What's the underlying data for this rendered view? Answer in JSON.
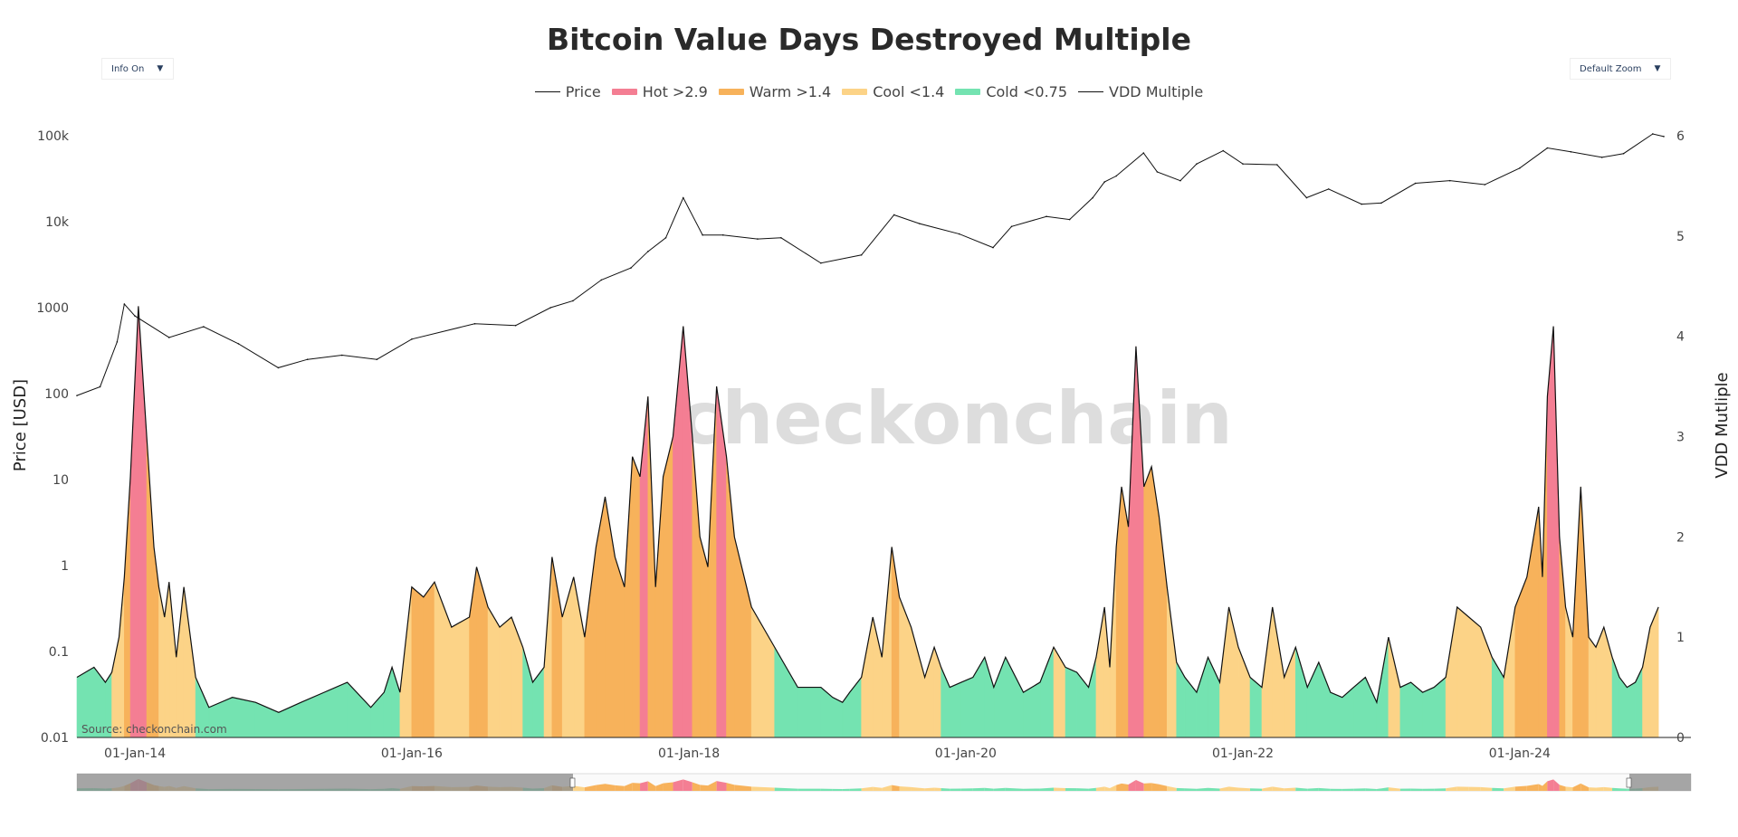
{
  "chart_data": {
    "type": "area",
    "title": "Bitcoin Value Days Destroyed Multiple",
    "source": "Source: checkonchain.com",
    "watermark": "checkonchain",
    "controls": {
      "info": "Info On",
      "zoom": "Default Zoom"
    },
    "legend": [
      {
        "name": "Price",
        "kind": "line",
        "color": "#111111"
      },
      {
        "name": "Hot >2.9",
        "kind": "area",
        "color": "#f47e93"
      },
      {
        "name": "Warm >1.4",
        "kind": "area",
        "color": "#f7b25b"
      },
      {
        "name": "Cool <1.4",
        "kind": "area",
        "color": "#fcd387"
      },
      {
        "name": "Cold <0.75",
        "kind": "area",
        "color": "#74e3b1"
      },
      {
        "name": "VDD Multiple",
        "kind": "line",
        "color": "#111111"
      }
    ],
    "y_left": {
      "label": "Price [USD]",
      "scale": "log",
      "range": [
        0.01,
        100000
      ],
      "ticks": [
        0.01,
        0.1,
        1,
        10,
        100,
        1000,
        10000,
        100000
      ],
      "tick_labels": [
        "0.01",
        "0.1",
        "1",
        "10",
        "100",
        "1000",
        "10k",
        "100k"
      ]
    },
    "y_right": {
      "label": "VDD Mutliple",
      "scale": "linear",
      "range": [
        0,
        6
      ],
      "ticks": [
        0,
        1,
        2,
        3,
        4,
        5,
        6
      ],
      "tick_labels": [
        "0",
        "1",
        "2",
        "3",
        "4",
        "5",
        "6"
      ]
    },
    "x_axis": {
      "range": [
        "2013-08-01",
        "2025-01-15"
      ],
      "ticks": [
        "2014-01-01",
        "2016-01-01",
        "2018-01-01",
        "2020-01-01",
        "2022-01-01",
        "2024-01-01"
      ],
      "tick_labels": [
        "01-Jan-14",
        "01-Jan-16",
        "01-Jan-18",
        "01-Jan-20",
        "01-Jan-22",
        "01-Jan-24"
      ]
    },
    "thresholds": {
      "hot": 2.9,
      "warm": 1.4,
      "cool": 0.75
    },
    "price_series": {
      "name": "Price",
      "x": [
        "2013-08-01",
        "2013-10-01",
        "2013-11-15",
        "2013-12-04",
        "2014-01-01",
        "2014-04-01",
        "2014-07-01",
        "2014-10-01",
        "2015-01-14",
        "2015-04-01",
        "2015-07-01",
        "2015-10-01",
        "2016-01-01",
        "2016-06-15",
        "2016-10-01",
        "2017-01-01",
        "2017-03-01",
        "2017-05-15",
        "2017-08-01",
        "2017-09-15",
        "2017-11-01",
        "2017-12-17",
        "2018-02-06",
        "2018-04-01",
        "2018-07-01",
        "2018-09-01",
        "2018-12-15",
        "2019-04-01",
        "2019-06-26",
        "2019-09-01",
        "2019-12-15",
        "2020-03-13",
        "2020-05-01",
        "2020-08-01",
        "2020-10-01",
        "2020-12-01",
        "2021-01-01",
        "2021-02-01",
        "2021-04-14",
        "2021-05-20",
        "2021-07-20",
        "2021-09-01",
        "2021-11-10",
        "2022-01-01",
        "2022-04-01",
        "2022-06-18",
        "2022-08-15",
        "2022-11-10",
        "2023-01-01",
        "2023-04-01",
        "2023-07-01",
        "2023-10-01",
        "2024-01-01",
        "2024-03-14",
        "2024-05-15",
        "2024-08-05",
        "2024-10-01",
        "2024-12-17",
        "2025-01-15"
      ],
      "values": [
        95,
        120,
        400,
        1100,
        800,
        450,
        600,
        380,
        200,
        250,
        280,
        250,
        430,
        650,
        620,
        1000,
        1200,
        2100,
        2900,
        4500,
        6500,
        19000,
        7000,
        7000,
        6300,
        6500,
        3300,
        4100,
        12000,
        9500,
        7200,
        5000,
        8800,
        11500,
        10600,
        19000,
        29000,
        34000,
        63000,
        38000,
        30000,
        47000,
        67000,
        47000,
        46000,
        19000,
        24000,
        16000,
        16500,
        28000,
        30000,
        27000,
        42000,
        72000,
        65000,
        56000,
        62000,
        105000,
        98000
      ]
    },
    "vdd_series": {
      "name": "VDD Multiple",
      "x": [
        "2013-08-01",
        "2013-09-15",
        "2013-10-15",
        "2013-11-01",
        "2013-11-20",
        "2013-12-04",
        "2013-12-20",
        "2014-01-10",
        "2014-02-01",
        "2014-02-20",
        "2014-03-05",
        "2014-03-20",
        "2014-04-01",
        "2014-04-20",
        "2014-05-10",
        "2014-06-10",
        "2014-07-15",
        "2014-09-15",
        "2014-11-15",
        "2015-01-15",
        "2015-03-15",
        "2015-05-15",
        "2015-07-15",
        "2015-09-15",
        "2015-10-20",
        "2015-11-10",
        "2015-12-01",
        "2016-01-01",
        "2016-02-01",
        "2016-03-01",
        "2016-04-15",
        "2016-06-01",
        "2016-06-20",
        "2016-07-20",
        "2016-08-20",
        "2016-09-20",
        "2016-10-20",
        "2016-11-15",
        "2016-12-15",
        "2017-01-05",
        "2017-02-01",
        "2017-03-03",
        "2017-04-01",
        "2017-05-01",
        "2017-05-25",
        "2017-06-20",
        "2017-07-15",
        "2017-08-05",
        "2017-08-25",
        "2017-09-15",
        "2017-10-05",
        "2017-10-25",
        "2017-11-20",
        "2017-12-17",
        "2018-01-10",
        "2018-01-30",
        "2018-02-20",
        "2018-03-15",
        "2018-04-10",
        "2018-05-01",
        "2018-06-15",
        "2018-08-15",
        "2018-10-15",
        "2018-12-15",
        "2019-01-15",
        "2019-02-10",
        "2019-03-01",
        "2019-04-01",
        "2019-05-01",
        "2019-05-25",
        "2019-06-20",
        "2019-07-10",
        "2019-08-10",
        "2019-09-15",
        "2019-10-10",
        "2019-10-28",
        "2019-11-20",
        "2019-12-20",
        "2020-01-20",
        "2020-02-20",
        "2020-03-15",
        "2020-04-15",
        "2020-06-01",
        "2020-07-15",
        "2020-08-20",
        "2020-09-20",
        "2020-10-20",
        "2020-11-20",
        "2020-12-10",
        "2021-01-01",
        "2021-01-15",
        "2021-02-01",
        "2021-02-15",
        "2021-03-05",
        "2021-03-25",
        "2021-04-15",
        "2021-05-05",
        "2021-05-25",
        "2021-06-15",
        "2021-07-10",
        "2021-08-01",
        "2021-09-01",
        "2021-10-01",
        "2021-11-01",
        "2021-11-25",
        "2021-12-20",
        "2022-01-20",
        "2022-02-20",
        "2022-03-20",
        "2022-04-20",
        "2022-05-20",
        "2022-06-20",
        "2022-07-20",
        "2022-08-20",
        "2022-09-20",
        "2022-10-20",
        "2022-11-20",
        "2022-12-20",
        "2023-01-20",
        "2023-02-20",
        "2023-03-20",
        "2023-04-20",
        "2023-05-20",
        "2023-06-20",
        "2023-07-20",
        "2023-08-20",
        "2023-09-20",
        "2023-10-20",
        "2023-11-20",
        "2023-12-20",
        "2024-01-20",
        "2024-02-20",
        "2024-03-01",
        "2024-03-14",
        "2024-03-30",
        "2024-04-15",
        "2024-05-01",
        "2024-05-20",
        "2024-06-10",
        "2024-07-01",
        "2024-07-20",
        "2024-08-10",
        "2024-09-01",
        "2024-09-20",
        "2024-10-10",
        "2024-11-01",
        "2024-11-20",
        "2024-12-10",
        "2025-01-01"
      ],
      "values": [
        0.6,
        0.7,
        0.55,
        0.65,
        1.0,
        1.6,
        2.6,
        4.3,
        3.0,
        1.9,
        1.5,
        1.2,
        1.55,
        0.8,
        1.5,
        0.6,
        0.3,
        0.4,
        0.35,
        0.25,
        0.35,
        0.45,
        0.55,
        0.3,
        0.45,
        0.7,
        0.45,
        1.5,
        1.4,
        1.55,
        1.1,
        1.2,
        1.7,
        1.3,
        1.1,
        1.2,
        0.9,
        0.55,
        0.7,
        1.8,
        1.2,
        1.6,
        1.0,
        1.9,
        2.4,
        1.8,
        1.5,
        2.8,
        2.6,
        3.4,
        1.5,
        2.6,
        3.0,
        4.1,
        3.0,
        2.0,
        1.7,
        3.5,
        2.8,
        2.0,
        1.3,
        0.9,
        0.5,
        0.5,
        0.4,
        0.35,
        0.45,
        0.6,
        1.2,
        0.8,
        1.9,
        1.4,
        1.1,
        0.6,
        0.9,
        0.7,
        0.5,
        0.55,
        0.6,
        0.8,
        0.5,
        0.8,
        0.45,
        0.55,
        0.9,
        0.7,
        0.65,
        0.5,
        0.8,
        1.3,
        0.7,
        1.9,
        2.5,
        2.1,
        3.9,
        2.5,
        2.7,
        2.2,
        1.5,
        0.75,
        0.6,
        0.45,
        0.8,
        0.55,
        1.3,
        0.9,
        0.6,
        0.5,
        1.3,
        0.6,
        0.9,
        0.5,
        0.75,
        0.45,
        0.4,
        0.5,
        0.6,
        0.35,
        1.0,
        0.5,
        0.55,
        0.45,
        0.5,
        0.6,
        1.3,
        1.2,
        1.1,
        0.8,
        0.6,
        1.3,
        1.6,
        2.3,
        1.6,
        3.4,
        4.1,
        2.0,
        1.3,
        1.0,
        2.5,
        1.0,
        0.9,
        1.1,
        0.8,
        0.6,
        0.5,
        0.55,
        0.7,
        1.1,
        1.3
      ]
    }
  }
}
